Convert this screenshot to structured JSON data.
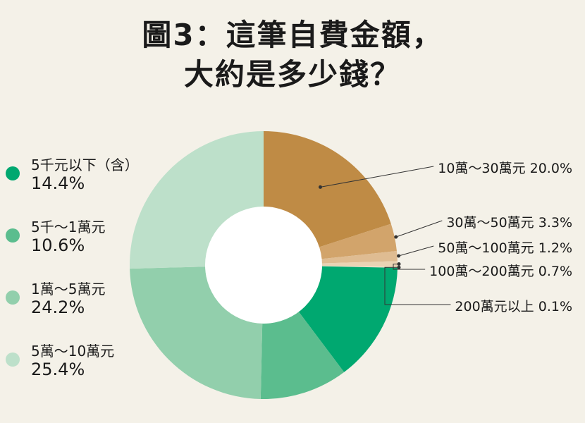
{
  "title": {
    "line1": "圖3：這筆自費金額，",
    "line2": "大約是多少錢？"
  },
  "colors": {
    "background": "#f4f1e8",
    "hole": "#ffffff",
    "leader": "#333333"
  },
  "chart_data": {
    "type": "pie",
    "donut": true,
    "title": "圖3：這筆自費金額，大約是多少錢？",
    "unit": "%",
    "legend_position": "left",
    "slices": [
      {
        "label": "10萬～30萬元",
        "value": 20.0,
        "display": "20.0%",
        "color": "#bf8b45"
      },
      {
        "label": "30萬～50萬元",
        "value": 3.3,
        "display": "3.3%",
        "color": "#d2a46b"
      },
      {
        "label": "50萬～100萬元",
        "value": 1.2,
        "display": "1.2%",
        "color": "#dfbc92"
      },
      {
        "label": "100萬～200萬元",
        "value": 0.7,
        "display": "0.7%",
        "color": "#ead3b4"
      },
      {
        "label": "200萬元以上",
        "value": 0.1,
        "display": "0.1%",
        "color": "#f2e3cf"
      },
      {
        "label": "5千元以下（含）",
        "value": 14.4,
        "display": "14.4%",
        "color": "#00a870"
      },
      {
        "label": "5千～1萬元",
        "value": 10.6,
        "display": "10.6%",
        "color": "#5bbd8e"
      },
      {
        "label": "1萬～5萬元",
        "value": 24.2,
        "display": "24.2%",
        "color": "#92cfac"
      },
      {
        "label": "5萬～10萬元",
        "value": 25.4,
        "display": "25.4%",
        "color": "#bde0ca"
      }
    ]
  }
}
